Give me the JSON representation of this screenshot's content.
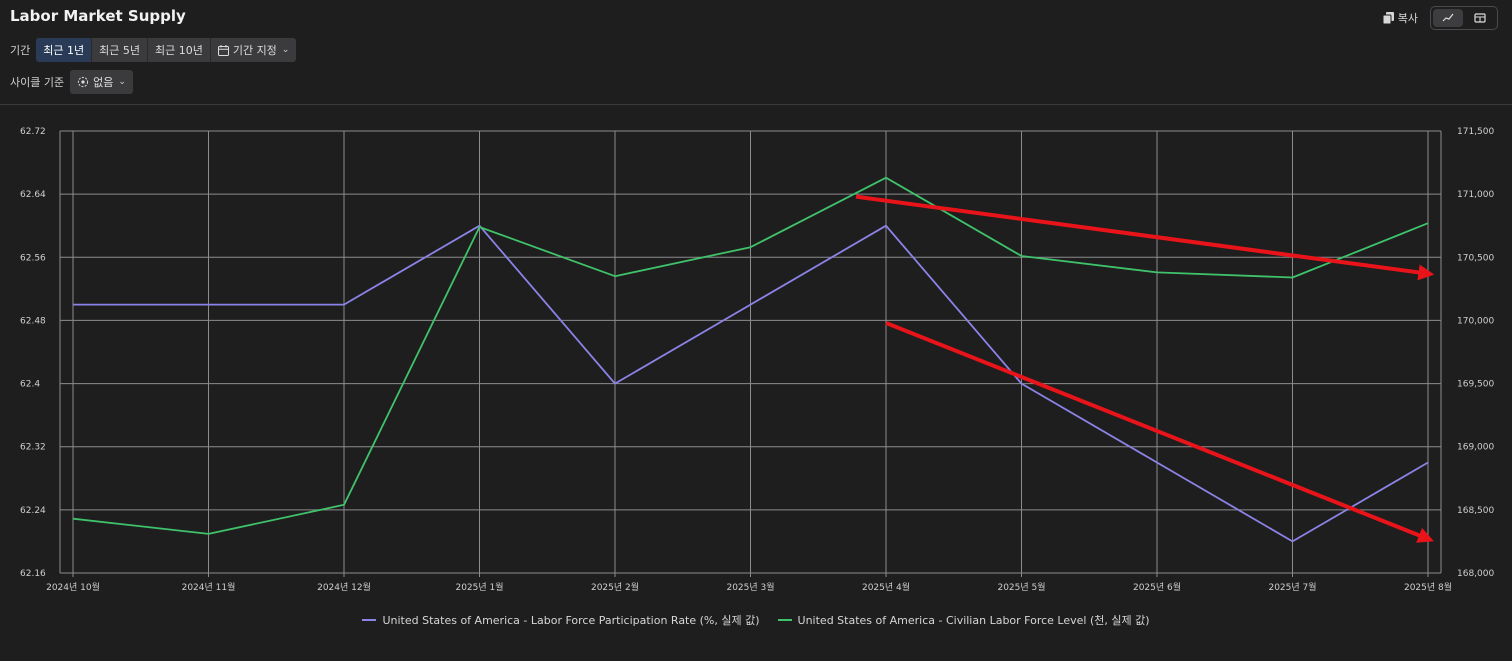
{
  "header": {
    "title": "Labor Market Supply",
    "copy_label": "복사",
    "copy_icon": "copy-icon",
    "view_icons": [
      "line-chart-icon",
      "table-icon"
    ]
  },
  "period": {
    "label": "기간",
    "options": [
      "최근 1년",
      "최근 5년",
      "최근 10년",
      "기간 지정"
    ],
    "selected": "최근 1년"
  },
  "cycle": {
    "label": "사이클 기준",
    "value": "없음"
  },
  "colors": {
    "series_a": "#8b83e6",
    "series_b": "#3fc26a",
    "annotation": "#e8141a",
    "grid": "#8c8c8f",
    "active_segment": "#2a3b57"
  },
  "chart_data": {
    "type": "line",
    "categories": [
      "2024년 10월",
      "2024년 11월",
      "2024년 12월",
      "2025년 1월",
      "2025년 2월",
      "2025년 3월",
      "2025년 4월",
      "2025년 5월",
      "2025년 6월",
      "2025년 7월",
      "2025년 8월"
    ],
    "series": [
      {
        "name": "United States of America - Labor Force Participation Rate (%, 실제 값)",
        "axis": "left",
        "color": "#8b83e6",
        "values": [
          62.5,
          62.5,
          62.5,
          62.6,
          62.4,
          62.5,
          62.6,
          62.4,
          62.3,
          62.2,
          62.3
        ]
      },
      {
        "name": "United States of America - Civilian Labor Force Level (천, 실제 값)",
        "axis": "right",
        "color": "#3fc26a",
        "values": [
          168430,
          168310,
          168540,
          170740,
          170350,
          170580,
          171130,
          170510,
          170380,
          170340,
          170770
        ]
      }
    ],
    "left_axis": {
      "min": 62.16,
      "max": 62.72,
      "ticks": [
        "62.72",
        "62.64",
        "62.56",
        "62.48",
        "62.4",
        "62.32",
        "62.24",
        "62.16"
      ]
    },
    "right_axis": {
      "min": 168000,
      "max": 171500,
      "ticks": [
        "171,500",
        "171,000",
        "170,500",
        "170,000",
        "169,500",
        "169,000",
        "168,500",
        "168,000"
      ]
    },
    "grid": true,
    "legend_position": "bottom",
    "annotations": [
      {
        "type": "arrow",
        "from": [
          "2025년 4월",
          170980
        ],
        "to": [
          "2025년 8월",
          170370
        ],
        "axis": "right"
      },
      {
        "type": "arrow",
        "from": [
          "2025년 4월",
          169980
        ],
        "to": [
          "2025년 8월",
          168270
        ],
        "axis": "right"
      }
    ]
  }
}
